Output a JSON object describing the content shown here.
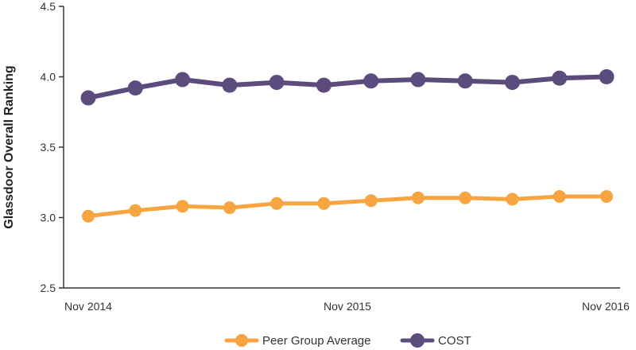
{
  "chart_data": {
    "type": "line",
    "title": "",
    "xlabel": "",
    "ylabel": "Glassdoor Overall Ranking",
    "ylim": [
      2.5,
      4.5
    ],
    "yticks": [
      "2.5",
      "3.0",
      "3.5",
      "4.0",
      "4.5"
    ],
    "xtick_labels": [
      "Nov 2014",
      "Nov 2015",
      "Nov 2016"
    ],
    "legend_placement": "bottom-center",
    "grid": false,
    "series": [
      {
        "name": "Peer Group Average",
        "color": "#F7A541",
        "values": [
          3.01,
          3.05,
          3.08,
          3.07,
          3.1,
          3.1,
          3.12,
          3.14,
          3.14,
          3.13,
          3.15,
          3.15
        ]
      },
      {
        "name": "COST",
        "color": "#5C4B7D",
        "values": [
          3.85,
          3.92,
          3.98,
          3.94,
          3.96,
          3.94,
          3.97,
          3.98,
          3.97,
          3.96,
          3.99,
          4.0
        ]
      }
    ]
  }
}
